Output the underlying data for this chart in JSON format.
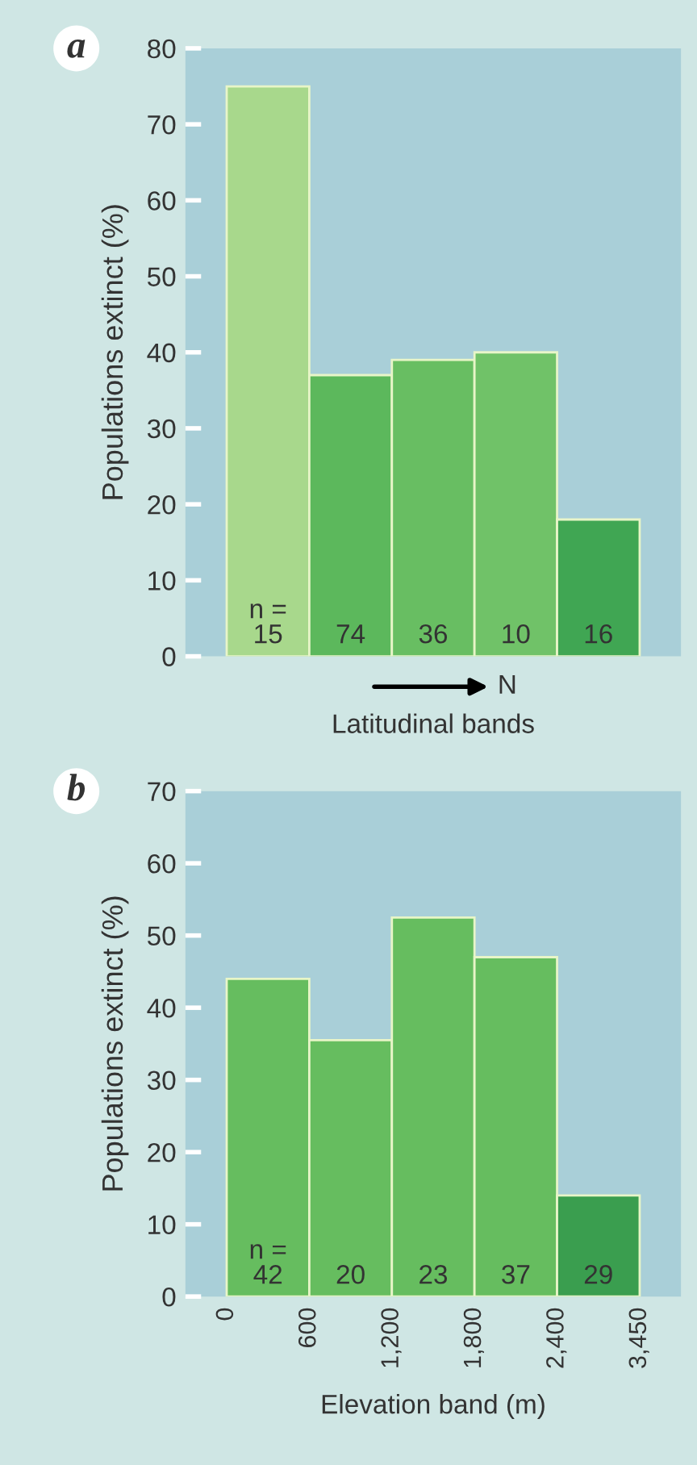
{
  "chart_data": [
    {
      "type": "bar",
      "title": "a",
      "xlabel": "Latitudinal bands",
      "ylabel": "Populations extinct (%)",
      "categories": [
        null,
        null,
        null,
        null,
        null
      ],
      "values": [
        75,
        37,
        39,
        40,
        18
      ],
      "colors": [
        "#a8d88c",
        "#5cb85c",
        "#68be62",
        "#70c268",
        "#40a653"
      ],
      "ylim": [
        0,
        80
      ],
      "yticks": [
        0,
        10,
        20,
        30,
        40,
        50,
        60,
        70,
        80
      ],
      "annotations": [
        "n =\n15",
        "74",
        "36",
        "10",
        "16",
        "N"
      ],
      "grid": false,
      "legend": false
    },
    {
      "type": "bar",
      "title": "b",
      "xlabel": "Elevation band (m)",
      "ylabel": "Populations extinct (%)",
      "categories": [
        null,
        null,
        null,
        null,
        null
      ],
      "values": [
        44,
        35.5,
        52.5,
        47,
        14
      ],
      "colors": [
        "#66bd5f",
        "#66bd5f",
        "#66bd5f",
        "#66bd5f",
        "#3a9e4f"
      ],
      "ylim": [
        0,
        70
      ],
      "yticks": [
        0,
        10,
        20,
        30,
        40,
        50,
        60,
        70
      ],
      "annotations": [
        "n =\n42",
        "20",
        "23",
        "37",
        "29",
        "0",
        "600",
        "1,200",
        "1,800",
        "2,400",
        "3,450"
      ],
      "grid": false,
      "legend": false
    }
  ]
}
